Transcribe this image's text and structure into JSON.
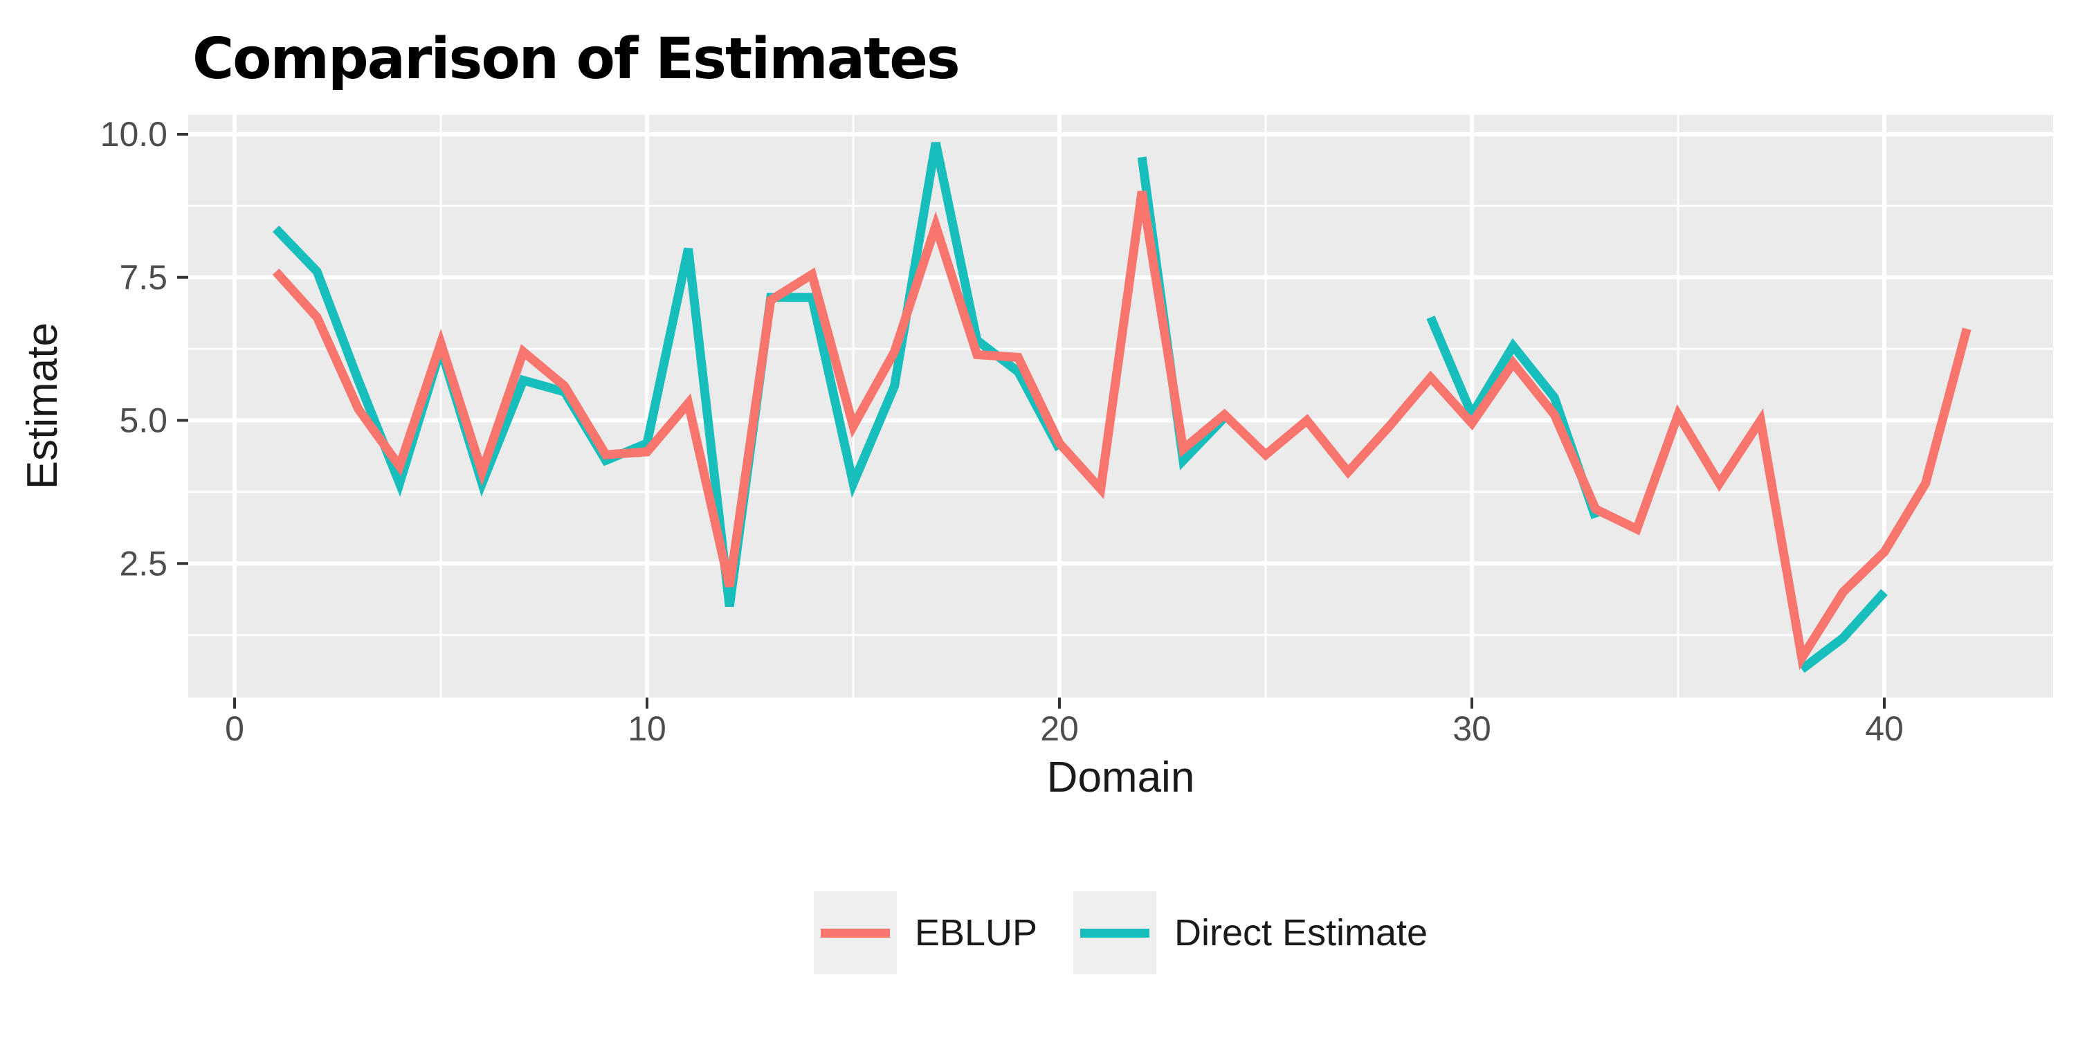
{
  "title": "Comparison of Estimates",
  "chart_data": {
    "type": "line",
    "title": "Comparison of Estimates",
    "xlabel": "Domain",
    "ylabel": "Estimate",
    "x": [
      1,
      2,
      3,
      4,
      5,
      6,
      7,
      8,
      9,
      10,
      11,
      12,
      13,
      14,
      15,
      16,
      17,
      18,
      19,
      20,
      21,
      22,
      23,
      24,
      25,
      26,
      27,
      28,
      29,
      30,
      31,
      32,
      33,
      34,
      35,
      36,
      37,
      38,
      39,
      40,
      41,
      42
    ],
    "series": [
      {
        "name": "EBLUP",
        "color": "#F8766D",
        "values": [
          7.6,
          6.8,
          5.2,
          4.2,
          6.35,
          4.1,
          6.2,
          5.6,
          4.4,
          4.45,
          5.3,
          2.1,
          7.1,
          7.55,
          4.9,
          6.2,
          8.4,
          6.15,
          6.1,
          4.6,
          3.8,
          9.0,
          4.5,
          5.1,
          4.4,
          5.0,
          4.1,
          4.9,
          5.75,
          4.95,
          6.0,
          5.1,
          3.45,
          3.1,
          5.1,
          3.9,
          5.0,
          0.85,
          2.0,
          2.7,
          3.9,
          6.6
        ]
      },
      {
        "name": "Direct Estimate",
        "color": "#17BEBB",
        "values": [
          8.35,
          7.6,
          5.7,
          3.9,
          6.25,
          3.9,
          5.7,
          5.5,
          4.3,
          4.6,
          8.0,
          1.75,
          7.15,
          7.15,
          3.9,
          5.6,
          9.85,
          6.4,
          5.85,
          4.5,
          null,
          9.6,
          4.3,
          5.05,
          null,
          null,
          null,
          null,
          6.8,
          5.1,
          6.3,
          5.4,
          3.3,
          null,
          null,
          null,
          null,
          0.65,
          1.2,
          2.0,
          null,
          null
        ]
      }
    ],
    "x_ticks": {
      "values": [
        0,
        10,
        20,
        30,
        40
      ],
      "labels": [
        "0",
        "10",
        "20",
        "30",
        "40"
      ]
    },
    "y_ticks": {
      "values": [
        10.0,
        7.5,
        5.0,
        2.5
      ],
      "labels": [
        "10.0",
        "7.5",
        "5.0",
        "2.5"
      ]
    },
    "x_minor_ticks": [
      5,
      15,
      25,
      35
    ],
    "y_minor_ticks": [
      8.75,
      6.25,
      3.75,
      1.25
    ],
    "xlim": [
      -1.05,
      44.05
    ],
    "ylim": [
      0.19,
      10.31
    ],
    "grid": "white major and minor gridlines on gray panel",
    "legend_position": "bottom-center"
  },
  "colors": {
    "panel_background": "#EBEBEB",
    "gridline": "#FFFFFF",
    "tick_label": "#4D4D4D",
    "tick_mark": "#333333",
    "axis_title": "#1A1A1A",
    "title": "#000000",
    "legend_key_background": "#EFEFEF",
    "page_background": "#FFFFFF"
  }
}
